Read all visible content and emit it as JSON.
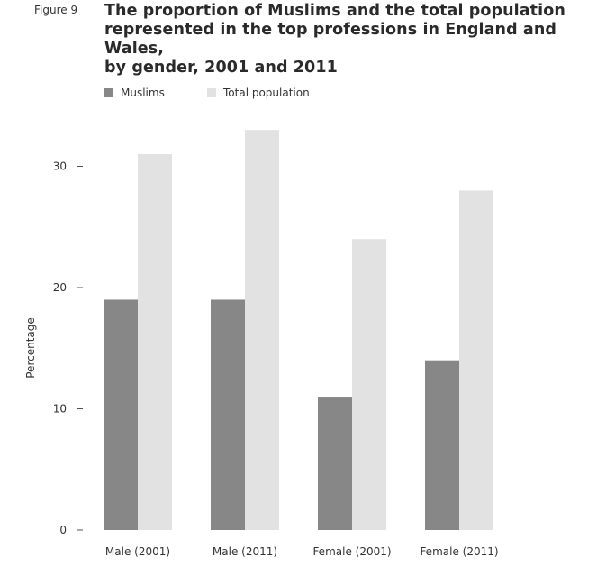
{
  "figure_label": "Figure 9",
  "title_lines": [
    "The proportion of Muslims and the total population",
    "represented in the top professions in England and Wales,",
    "by gender, 2001 and 2011"
  ],
  "colors": {
    "muslims": "#878787",
    "total": "#e2e2e2",
    "axis": "#555555"
  },
  "chart_data": {
    "type": "bar",
    "title": "The proportion of Muslims and the total population represented in the top professions in England and Wales, by gender, 2001 and 2011",
    "xlabel": "",
    "ylabel": "Percentage",
    "categories": [
      "Male (2001)",
      "Male (2011)",
      "Female (2001)",
      "Female (2011)"
    ],
    "series": [
      {
        "name": "Muslims",
        "values": [
          19,
          19,
          11,
          14
        ]
      },
      {
        "name": "Total population",
        "values": [
          31,
          33,
          24,
          28
        ]
      }
    ],
    "yticks": [
      0,
      10,
      20,
      30
    ],
    "ylim": [
      0,
      33
    ],
    "grid": false,
    "legend": "top-left"
  }
}
